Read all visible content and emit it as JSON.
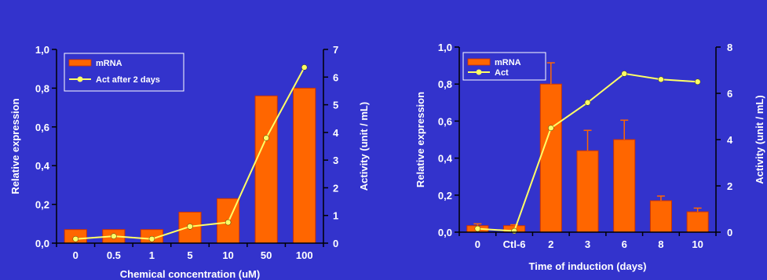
{
  "colors": {
    "background": "#3333cc",
    "bar": "#ff6600",
    "bar_edge": "#cc3300",
    "line": "#ffff66",
    "axis": "#000000",
    "text": "#ffffff",
    "legend_bg": "#3333cc"
  },
  "chart_data": [
    {
      "type": "bar",
      "title": "",
      "xlabel": "Chemical concentration (uM)",
      "ylabel": "Relative expression",
      "y2label": "Activity (unit / mL)",
      "categories": [
        "0",
        "0.5",
        "1",
        "5",
        "10",
        "50",
        "100"
      ],
      "ylim": [
        0,
        1.0
      ],
      "yticks": [
        "0,0",
        "0,2",
        "0,4",
        "0,6",
        "0,8",
        "1,0"
      ],
      "y2lim": [
        0,
        7
      ],
      "y2ticks": [
        "0",
        "1",
        "2",
        "3",
        "4",
        "5",
        "6",
        "7"
      ],
      "legend_position": "top-left",
      "series": [
        {
          "name": "mRNA",
          "type": "bar",
          "axis": "left",
          "values": [
            0.07,
            0.07,
            0.07,
            0.16,
            0.23,
            0.76,
            0.8
          ]
        },
        {
          "name": "Act after 2 days",
          "type": "line",
          "axis": "right",
          "values": [
            0.15,
            0.25,
            0.15,
            0.6,
            0.75,
            3.8,
            6.35
          ]
        }
      ]
    },
    {
      "type": "bar",
      "title": "",
      "xlabel": "Time of induction (days)",
      "ylabel": "Relative expression",
      "y2label": "Activity (unit / mL)",
      "categories": [
        "0",
        "Ctl-6",
        "2",
        "3",
        "6",
        "8",
        "10"
      ],
      "ylim": [
        0,
        1.0
      ],
      "yticks": [
        "0,0",
        "0,2",
        "0,4",
        "0,6",
        "0,8",
        "1,0"
      ],
      "y2lim": [
        0,
        8
      ],
      "y2ticks": [
        "0",
        "2",
        "4",
        "6",
        "8"
      ],
      "legend_position": "top-left",
      "series": [
        {
          "name": "mRNA",
          "type": "bar",
          "axis": "left",
          "values": [
            0.035,
            0.035,
            0.8,
            0.44,
            0.5,
            0.17,
            0.11
          ],
          "errors": [
            0.01,
            0.005,
            0.115,
            0.11,
            0.105,
            0.025,
            0.02
          ]
        },
        {
          "name": "Act",
          "type": "line",
          "axis": "right",
          "values": [
            0.15,
            0.05,
            4.5,
            5.6,
            6.85,
            6.6,
            6.5
          ]
        }
      ]
    }
  ]
}
